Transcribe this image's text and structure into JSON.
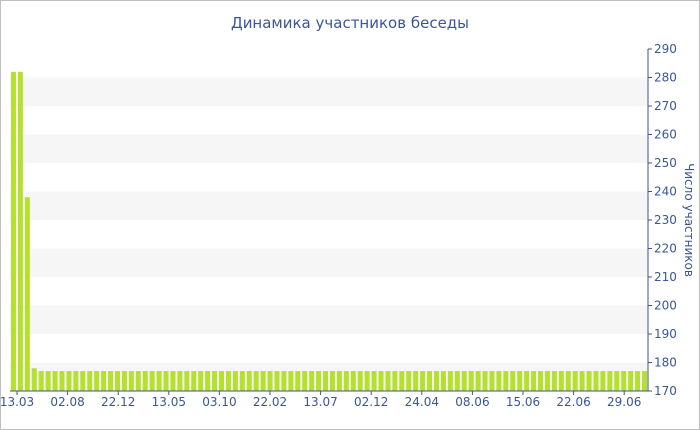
{
  "chart_data": {
    "type": "bar",
    "title": "Динамика участников беседы",
    "xlabel": "",
    "ylabel": "Число участников",
    "ylim": [
      170,
      290
    ],
    "y_ticks": [
      170,
      180,
      190,
      200,
      210,
      220,
      230,
      240,
      250,
      260,
      270,
      280,
      290
    ],
    "x_tick_labels": [
      "13.03",
      "02.08",
      "22.12",
      "13.05",
      "03.10",
      "22.02",
      "13.07",
      "02.12",
      "24.04",
      "08.06",
      "15.06",
      "22.06",
      "29.06"
    ],
    "bar_color": "#b5e02e",
    "grid_band_color": "#f6f6f6",
    "grid": true,
    "y_axis_position": "right",
    "legend": "none",
    "values": [
      282,
      282,
      238,
      178,
      177,
      177,
      177,
      177,
      177,
      177,
      177,
      177,
      177,
      177,
      177,
      177,
      177,
      177,
      177,
      177,
      177,
      177,
      177,
      177,
      177,
      177,
      177,
      177,
      177,
      177,
      177,
      177,
      177,
      177,
      177,
      177,
      177,
      177,
      177,
      177,
      177,
      177,
      177,
      177,
      177,
      177,
      177,
      177,
      177,
      177,
      177,
      177,
      177,
      177,
      177,
      177,
      177,
      177,
      177,
      177,
      177,
      177,
      177,
      177,
      177,
      177,
      177,
      177,
      177,
      177,
      177,
      177,
      177,
      177,
      177,
      177,
      177,
      177,
      177,
      177,
      177,
      177,
      177,
      177,
      177,
      177,
      177,
      177,
      177,
      177,
      177,
      177
    ]
  }
}
